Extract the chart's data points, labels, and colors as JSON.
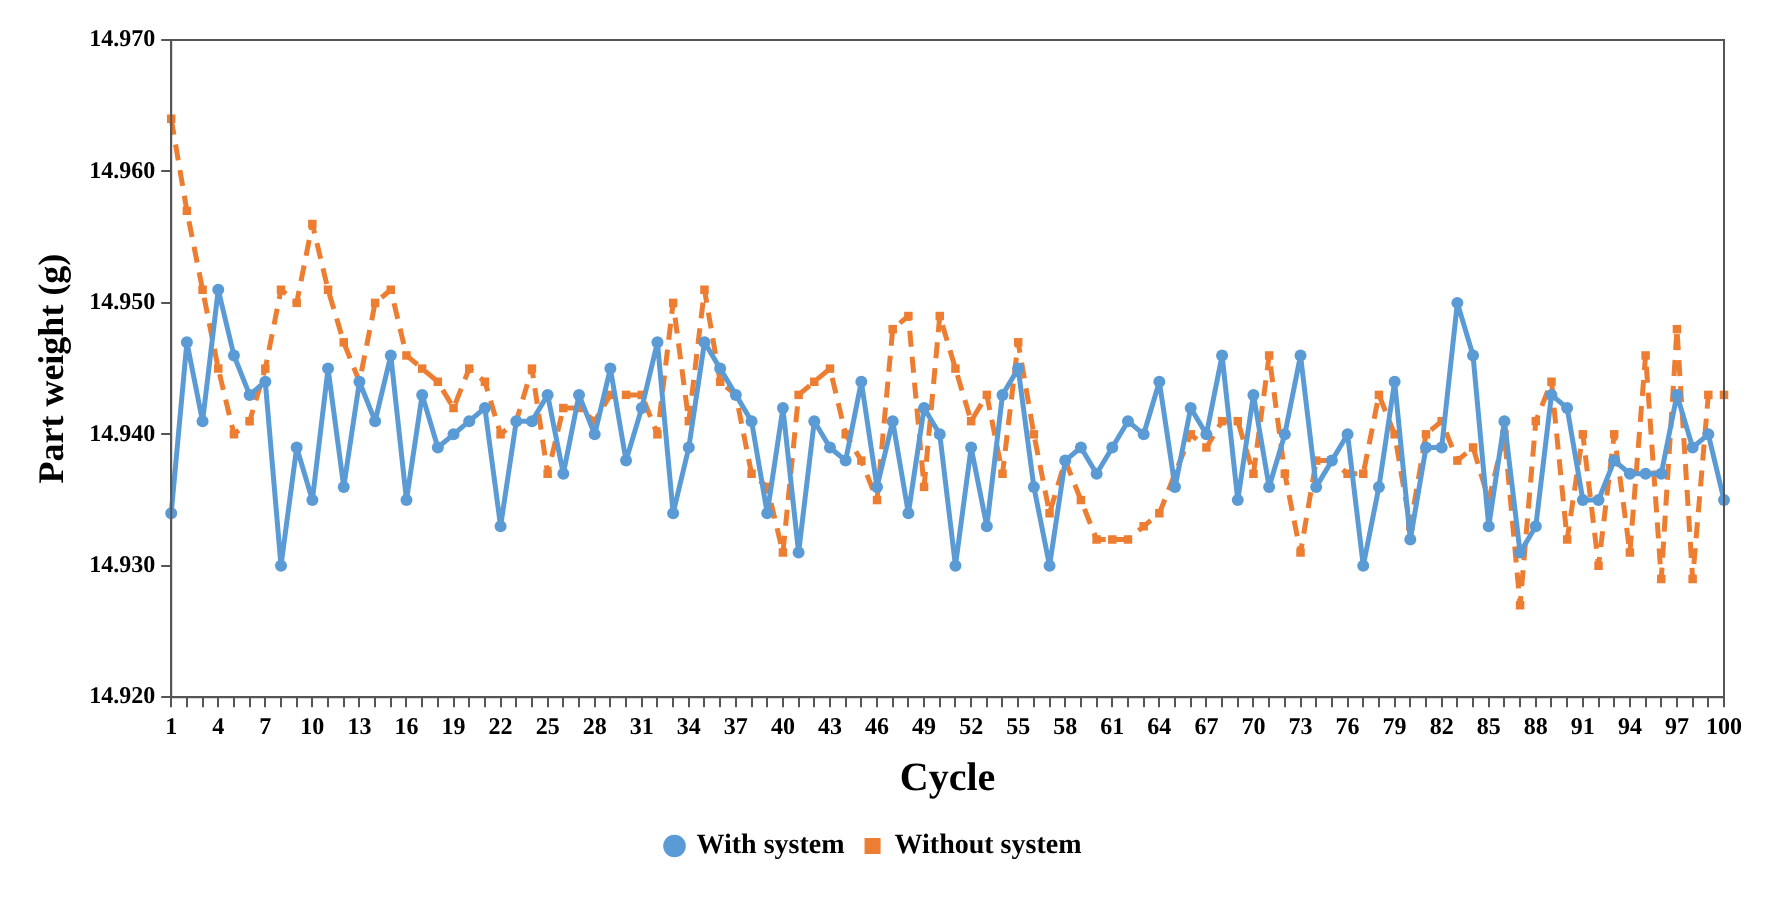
{
  "chart_data": {
    "type": "line",
    "xlabel": "Cycle",
    "ylabel": "Part weight (g)",
    "categories": [
      "1",
      null,
      null,
      "4",
      null,
      null,
      "7",
      null,
      null,
      "10",
      null,
      null,
      "13",
      null,
      null,
      "16",
      null,
      null,
      "19",
      null,
      null,
      "22",
      null,
      null,
      "25",
      null,
      null,
      "28",
      null,
      null,
      "31",
      null,
      null,
      "34",
      null,
      null,
      "37",
      null,
      null,
      "40",
      null,
      null,
      "43",
      null,
      null,
      "46",
      null,
      null,
      "49",
      null,
      null,
      "52",
      null,
      null,
      "55",
      null,
      null,
      "58",
      null,
      null,
      "61",
      null,
      null,
      "64",
      null,
      null,
      "67",
      null,
      null,
      "70",
      null,
      null,
      "73",
      null,
      null,
      "76",
      null,
      null,
      "79",
      null,
      null,
      "82",
      null,
      null,
      "85",
      null,
      null,
      "88",
      null,
      null,
      "91",
      null,
      null,
      "94",
      null,
      null,
      "97",
      null,
      null,
      "100"
    ],
    "series": [
      {
        "name": "With system",
        "color": "#5b9bd5",
        "marker": "circle",
        "line_style": "solid",
        "values": [
          14.934,
          14.947,
          14.941,
          14.951,
          14.946,
          14.943,
          14.944,
          14.93,
          14.939,
          14.935,
          14.945,
          14.936,
          14.944,
          14.941,
          14.946,
          14.935,
          14.943,
          14.939,
          14.94,
          14.941,
          14.942,
          14.933,
          14.941,
          14.941,
          14.943,
          14.937,
          14.943,
          14.94,
          14.945,
          14.938,
          14.942,
          14.947,
          14.934,
          14.939,
          14.947,
          14.945,
          14.943,
          14.941,
          14.934,
          14.942,
          14.931,
          14.941,
          14.939,
          14.938,
          14.944,
          14.936,
          14.941,
          14.934,
          14.942,
          14.94,
          14.93,
          14.939,
          14.933,
          14.943,
          14.945,
          14.936,
          14.93,
          14.938,
          14.939,
          14.937,
          14.939,
          14.941,
          14.94,
          14.944,
          14.936,
          14.942,
          14.94,
          14.946,
          14.935,
          14.943,
          14.936,
          14.94,
          14.946,
          14.936,
          14.938,
          14.94,
          14.93,
          14.936,
          14.944,
          14.932,
          14.939,
          14.939,
          14.95,
          14.946,
          14.933,
          14.941,
          14.931,
          14.933,
          14.943,
          14.942,
          14.935,
          14.935,
          14.938,
          14.937,
          14.937,
          14.937,
          14.943,
          14.939,
          14.94,
          14.935
        ]
      },
      {
        "name": "Without system",
        "color": "#ed7d31",
        "marker": "square",
        "line_style": "dashed",
        "values": [
          14.964,
          14.957,
          14.951,
          14.945,
          14.94,
          14.941,
          14.945,
          14.951,
          14.95,
          14.956,
          14.951,
          14.947,
          14.944,
          14.95,
          14.951,
          14.946,
          14.945,
          14.944,
          14.942,
          14.945,
          14.944,
          14.94,
          14.941,
          14.945,
          14.937,
          14.942,
          14.942,
          14.941,
          14.943,
          14.943,
          14.943,
          14.94,
          14.95,
          14.941,
          14.951,
          14.944,
          14.943,
          14.937,
          14.936,
          14.931,
          14.943,
          14.944,
          14.945,
          14.94,
          14.938,
          14.935,
          14.948,
          14.949,
          14.936,
          14.949,
          14.945,
          14.941,
          14.943,
          14.937,
          14.947,
          14.94,
          14.934,
          14.938,
          14.935,
          14.932,
          14.932,
          14.932,
          14.933,
          14.934,
          14.937,
          14.94,
          14.939,
          14.941,
          14.941,
          14.937,
          14.946,
          14.937,
          14.931,
          14.938,
          14.938,
          14.937,
          14.937,
          14.943,
          14.94,
          14.933,
          14.94,
          14.941,
          14.938,
          14.939,
          14.935,
          14.94,
          14.927,
          14.941,
          14.944,
          14.932,
          14.94,
          14.93,
          14.94,
          14.931,
          14.946,
          14.929,
          14.948,
          14.929,
          14.943,
          14.943
        ]
      }
    ],
    "ylim": [
      14.92,
      14.97
    ],
    "yticks": [
      {
        "value": 14.92,
        "label": "14.920"
      },
      {
        "value": 14.93,
        "label": "14.930"
      },
      {
        "value": 14.94,
        "label": "14.940"
      },
      {
        "value": 14.95,
        "label": "14.950"
      },
      {
        "value": 14.96,
        "label": "14.960"
      },
      {
        "value": 14.97,
        "label": "14.970"
      }
    ],
    "grid": false,
    "legend": "bottom"
  }
}
